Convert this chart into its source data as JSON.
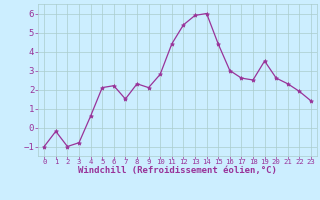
{
  "x": [
    0,
    1,
    2,
    3,
    4,
    5,
    6,
    7,
    8,
    9,
    10,
    11,
    12,
    13,
    14,
    15,
    16,
    17,
    18,
    19,
    20,
    21,
    22,
    23
  ],
  "y": [
    -1,
    -0.2,
    -1,
    -0.8,
    0.6,
    2.1,
    2.2,
    1.5,
    2.3,
    2.1,
    2.8,
    4.4,
    5.4,
    5.9,
    6.0,
    4.4,
    3.0,
    2.6,
    2.5,
    3.5,
    2.6,
    2.3,
    1.9,
    1.4
  ],
  "line_color": "#993399",
  "marker": "*",
  "marker_size": 3,
  "bg_color": "#cceeff",
  "grid_color": "#aacccc",
  "xlabel": "Windchill (Refroidissement éolien,°C)",
  "xlabel_color": "#993399",
  "tick_color": "#993399",
  "ylim": [
    -1.5,
    6.5
  ],
  "xlim": [
    -0.5,
    23.5
  ],
  "yticks": [
    -1,
    0,
    1,
    2,
    3,
    4,
    5,
    6
  ],
  "xticks": [
    0,
    1,
    2,
    3,
    4,
    5,
    6,
    7,
    8,
    9,
    10,
    11,
    12,
    13,
    14,
    15,
    16,
    17,
    18,
    19,
    20,
    21,
    22,
    23
  ],
  "xtick_fontsize": 5.2,
  "ytick_fontsize": 6.5,
  "xlabel_fontsize": 6.5
}
